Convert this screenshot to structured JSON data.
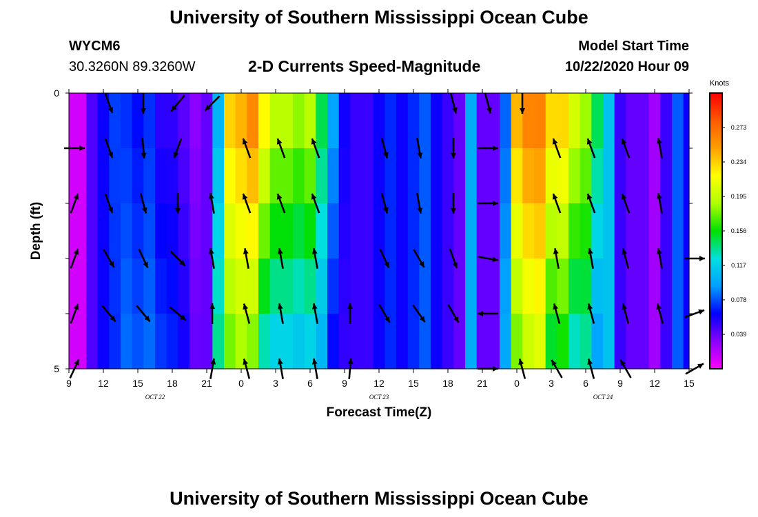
{
  "header": {
    "title_top": "University of Southern Mississippi Ocean Cube",
    "title_bottom": "University of Southern Mississippi Ocean Cube",
    "station": "WYCM6",
    "coords": "30.3260N 89.3260W",
    "plot_title": "2-D Currents Speed-Magnitude",
    "model_label": "Model Start Time",
    "model_time": "10/22/2020 Hour 09"
  },
  "chart_data": {
    "type": "heatmap",
    "title": "2-D Currents Speed-Magnitude",
    "xlabel": "Forecast Time(Z)",
    "ylabel": "Depth (ft)",
    "x_tick_labels": [
      "9",
      "12",
      "15",
      "18",
      "21",
      "0",
      "3",
      "6",
      "9",
      "12",
      "15",
      "18",
      "21",
      "0",
      "3",
      "6",
      "9",
      "12",
      "15"
    ],
    "date_labels": [
      {
        "label": "OCT 22",
        "hour": 7.5
      },
      {
        "label": "OCT 23",
        "hour": 27
      },
      {
        "label": "OCT 24",
        "hour": 46.5
      }
    ],
    "x_hours_range": [
      0,
      54
    ],
    "y_tick_labels": [
      "0",
      "5"
    ],
    "y_range": [
      0,
      5
    ],
    "depth_levels": [
      0,
      1,
      2,
      3,
      4,
      5
    ],
    "colorbar": {
      "unit": "Knots",
      "range": [
        0,
        0.312
      ],
      "ticks": [
        "0.273",
        "0.234",
        "0.195",
        "0.156",
        "0.117",
        "0.078",
        "0.039"
      ],
      "tick_values": [
        0.273,
        0.234,
        0.195,
        0.156,
        0.117,
        0.078,
        0.039
      ],
      "colors": [
        "#ff00ff",
        "#8a00ff",
        "#0000ff",
        "#00a0ff",
        "#00e0e0",
        "#00e000",
        "#b0ff00",
        "#ffff00",
        "#ffa000",
        "#ff5a00",
        "#ff0000"
      ]
    },
    "speed_profile": {
      "hours": [
        0,
        1,
        2,
        3,
        4,
        5,
        6,
        7,
        8,
        9,
        10,
        11,
        12,
        13,
        14,
        15,
        16,
        17,
        18,
        19,
        20,
        21,
        22,
        23,
        24,
        25,
        26,
        27,
        28,
        29,
        30,
        31,
        32,
        33,
        34,
        35,
        36,
        37,
        38,
        39,
        40,
        41,
        42,
        43,
        44,
        45,
        46,
        47,
        48,
        49,
        50,
        51,
        52,
        53,
        54
      ],
      "surface_knots": [
        0.012,
        0.012,
        0.045,
        0.06,
        0.075,
        0.07,
        0.062,
        0.07,
        0.05,
        0.05,
        0.04,
        0.03,
        0.04,
        0.1,
        0.24,
        0.25,
        0.27,
        0.23,
        0.2,
        0.2,
        0.19,
        0.2,
        0.15,
        0.1,
        0.06,
        0.05,
        0.05,
        0.06,
        0.07,
        0.06,
        0.07,
        0.08,
        0.06,
        0.05,
        0.04,
        0.1,
        0.04,
        0.04,
        0.08,
        0.25,
        0.27,
        0.27,
        0.24,
        0.24,
        0.21,
        0.19,
        0.15,
        0.11,
        0.05,
        0.04,
        0.04,
        0.025,
        0.05,
        0.08,
        0.06
      ],
      "bottom_knots": [
        0.012,
        0.012,
        0.045,
        0.06,
        0.07,
        0.085,
        0.08,
        0.085,
        0.075,
        0.07,
        0.06,
        0.04,
        0.04,
        0.14,
        0.17,
        0.18,
        0.17,
        0.12,
        0.11,
        0.11,
        0.105,
        0.11,
        0.1,
        0.06,
        0.05,
        0.05,
        0.05,
        0.06,
        0.07,
        0.06,
        0.07,
        0.08,
        0.06,
        0.05,
        0.04,
        0.1,
        0.04,
        0.04,
        0.1,
        0.17,
        0.19,
        0.2,
        0.14,
        0.15,
        0.12,
        0.13,
        0.09,
        0.11,
        0.05,
        0.04,
        0.04,
        0.025,
        0.05,
        0.08,
        0.06
      ]
    },
    "vectors": {
      "hours": [
        0,
        3,
        6,
        9,
        12,
        15,
        18,
        21,
        24,
        27,
        30,
        33,
        36,
        39,
        42,
        45,
        48,
        51,
        54
      ],
      "rows": [
        {
          "depth": 0,
          "dirs": [
            null,
            160,
            180,
            220,
            225,
            null,
            null,
            null,
            null,
            null,
            null,
            165,
            165,
            180,
            null,
            null,
            null,
            null,
            null
          ]
        },
        {
          "depth": 0.5,
          "dirs": [
            null,
            null,
            null,
            null,
            null,
            null,
            null,
            null,
            null,
            null,
            null,
            null,
            null,
            null,
            null,
            null,
            null,
            null,
            null
          ]
        },
        {
          "depth": 1,
          "dirs": [
            90,
            160,
            175,
            200,
            null,
            340,
            340,
            340,
            null,
            165,
            170,
            180,
            90,
            null,
            340,
            340,
            340,
            350,
            null
          ]
        },
        {
          "depth": 2,
          "dirs": [
            20,
            160,
            165,
            180,
            350,
            340,
            340,
            340,
            null,
            165,
            170,
            180,
            90,
            null,
            340,
            340,
            340,
            350,
            null
          ]
        },
        {
          "depth": 3,
          "dirs": [
            20,
            150,
            155,
            135,
            350,
            350,
            350,
            350,
            null,
            155,
            150,
            160,
            100,
            null,
            350,
            350,
            345,
            350,
            90
          ]
        },
        {
          "depth": 4,
          "dirs": [
            20,
            140,
            140,
            130,
            0,
            345,
            350,
            350,
            0,
            150,
            145,
            150,
            270,
            null,
            345,
            345,
            345,
            345,
            70
          ]
        },
        {
          "depth": 5,
          "dirs": [
            25,
            null,
            null,
            null,
            10,
            345,
            350,
            350,
            5,
            null,
            null,
            null,
            90,
            345,
            330,
            345,
            330,
            null,
            60
          ]
        }
      ]
    }
  }
}
